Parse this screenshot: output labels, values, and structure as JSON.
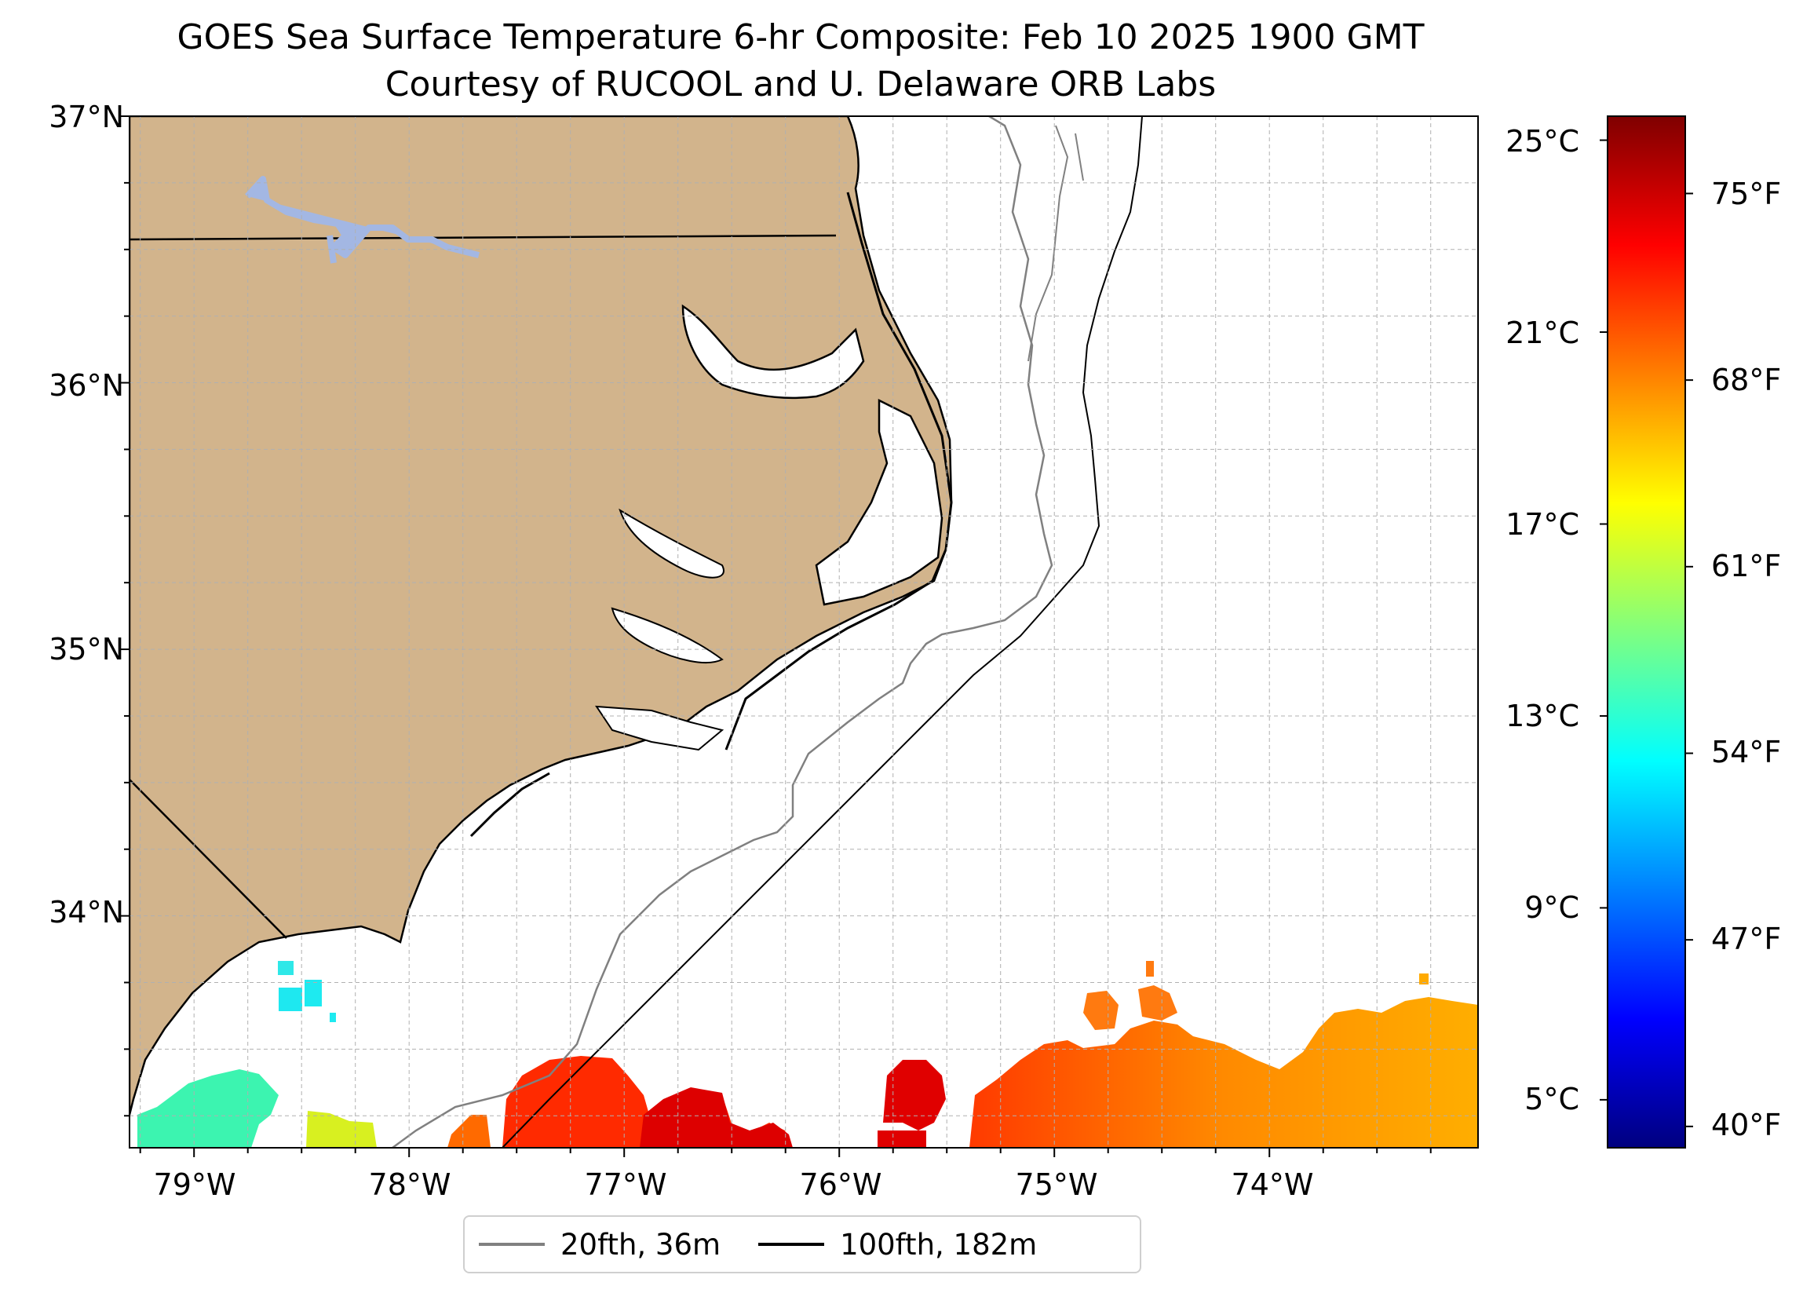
{
  "title": "GOES Sea Surface Temperature 6-hr Composite: Feb 10 2025 1900 GMT",
  "subtitle": "Courtesy of RUCOOL and U. Delaware ORB Labs",
  "map": {
    "lat_labels": [
      "37°N",
      "36°N",
      "35°N",
      "34°N"
    ],
    "lon_labels": [
      "79°W",
      "78°W",
      "77°W",
      "76°W",
      "75°W",
      "74°W"
    ],
    "extent": {
      "lon_min": -79.3,
      "lon_max": -73.03,
      "lat_min": 33.13,
      "lat_max": 37.0
    },
    "land_color": "#d2b48c",
    "lake_color": "#a3b7e3",
    "gridlines": true,
    "state_borders": [
      "North Carolina / Virginia",
      "North Carolina / South Carolina"
    ]
  },
  "colorbar": {
    "celsius_labels": [
      "25°C",
      "21°C",
      "17°C",
      "13°C",
      "9°C",
      "5°C"
    ],
    "fahrenheit_labels": [
      "75°F",
      "68°F",
      "61°F",
      "54°F",
      "47°F",
      "40°F"
    ],
    "colormap": "jet",
    "range_c": [
      4,
      25.5
    ],
    "stops": [
      "#00007f",
      "#0000ff",
      "#007fff",
      "#00ffff",
      "#7fff7f",
      "#ffff00",
      "#ff7f00",
      "#ff0000",
      "#7f0000"
    ]
  },
  "legend": {
    "items": [
      {
        "label": "20fth, 36m",
        "color": "#808080"
      },
      {
        "label": "100fth, 182m",
        "color": "#000000"
      }
    ]
  }
}
